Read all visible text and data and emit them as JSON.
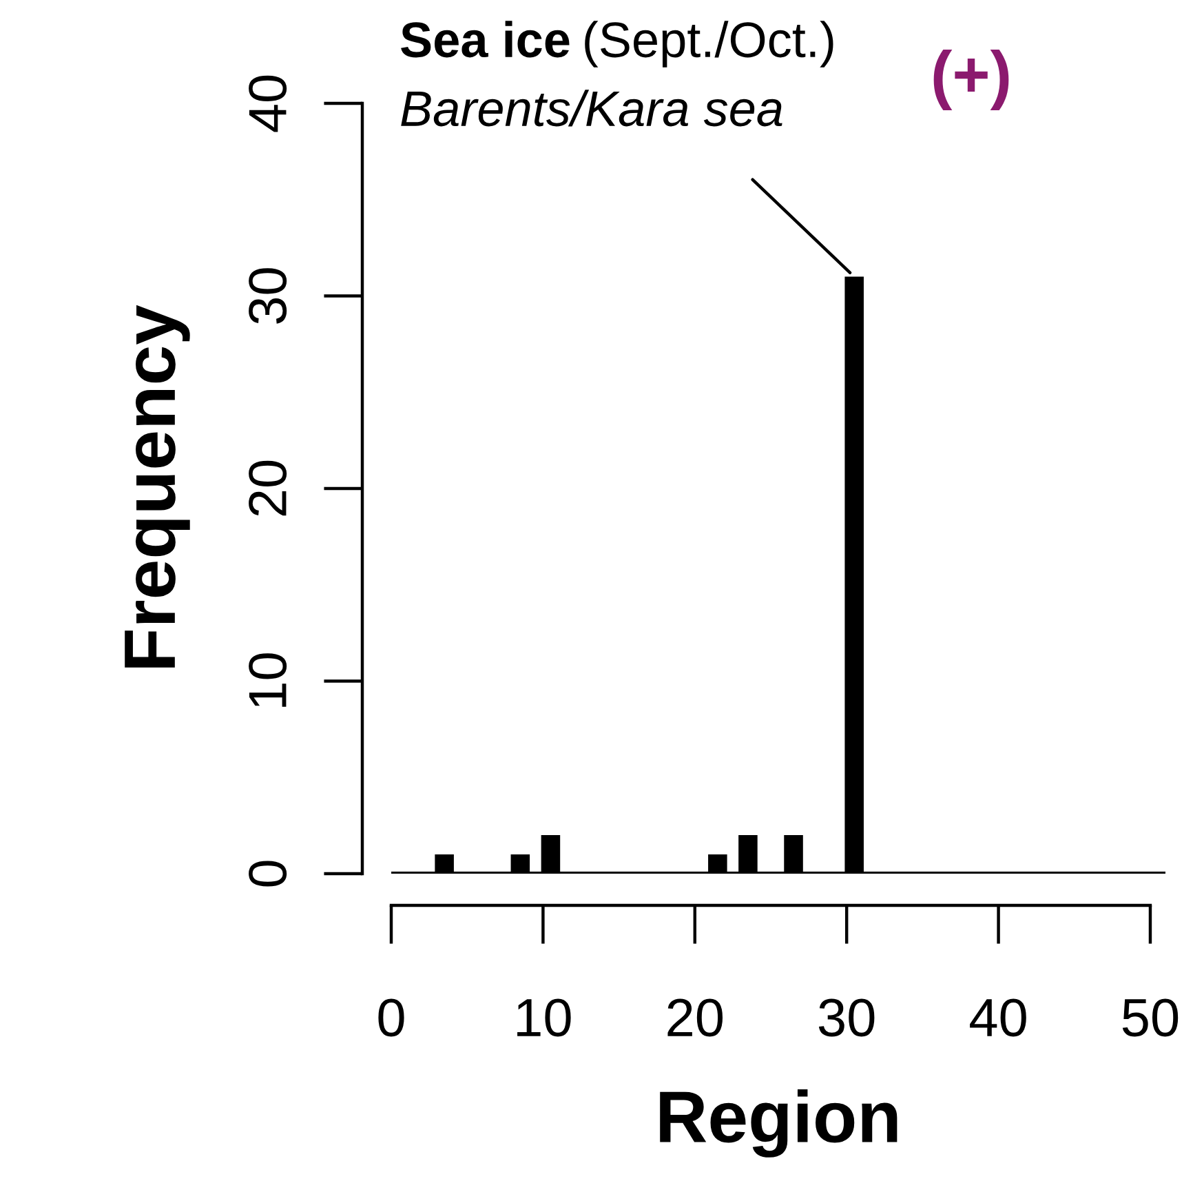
{
  "chart_data": {
    "type": "bar",
    "xlabel": "Region",
    "ylabel": "Frequency",
    "x": [
      3.5,
      8.5,
      10.5,
      21.5,
      23.5,
      26.5,
      30.5
    ],
    "values": [
      1,
      1,
      2,
      1,
      2,
      2,
      31
    ],
    "color": "#000000",
    "xlim": [
      0,
      51
    ],
    "xticks": [
      0,
      10,
      20,
      30,
      40,
      50
    ],
    "ylim": [
      0,
      40
    ],
    "yticks": [
      0,
      10,
      20,
      30,
      40
    ],
    "grid": false,
    "ref_lines": [
      {
        "axis": "y",
        "value": 0,
        "color": "#000000"
      }
    ],
    "annotations": [
      "Sea ice",
      "(Sept./Oct.)",
      {
        "text": "Barents/Kara sea",
        "x": 30.5,
        "y": 31
      },
      "(+)"
    ]
  }
}
